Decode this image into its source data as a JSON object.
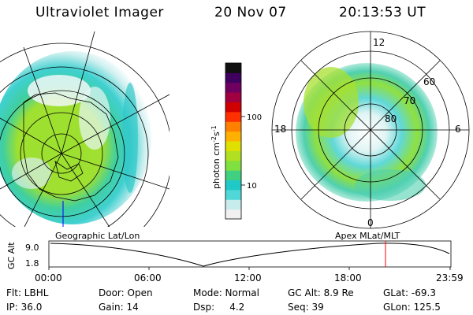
{
  "header": {
    "instrument": "Ultraviolet Imager",
    "date": "20 Nov 07",
    "time": "20:13:53 UT"
  },
  "panels": {
    "left_label": "Geographic Lat/Lon",
    "right_label": "Apex MLat/MLT"
  },
  "colorbar": {
    "label": "photon cm-2s-1",
    "ticks": [
      "100",
      "10"
    ],
    "colors": [
      "#f0f0f0",
      "#c8ecec",
      "#50d8d8",
      "#20c8c8",
      "#40d080",
      "#80e040",
      "#b0e020",
      "#e0e000",
      "#ffb000",
      "#ff8000",
      "#ff3000",
      "#d00000",
      "#a00040",
      "#700060",
      "#400060",
      "#101010"
    ]
  },
  "polar_labels": {
    "mlt": [
      "12",
      "18",
      "6",
      "0"
    ],
    "mlat": [
      "60",
      "70",
      "80"
    ]
  },
  "altitude_plot": {
    "ylabel": "GC Alt",
    "yticks": [
      "9.0",
      "1.8"
    ],
    "xticks": [
      "00:00",
      "06:00",
      "12:00",
      "18:00",
      "23:59"
    ],
    "marker_color": "#ff0000",
    "marker_time": "20:13:53"
  },
  "info": {
    "flt": "Flt: LBHL",
    "ip": "IP: 36.0",
    "door": "Door: Open",
    "gain": "Gain: 14",
    "mode": "Mode: Normal",
    "dsp": "Dsp:     4.2",
    "gcalt": "GC Alt: 8.9 Re",
    "seq": "Seq: 39",
    "glat": "GLat: -69.3",
    "glon": "GLon: 125.5"
  }
}
